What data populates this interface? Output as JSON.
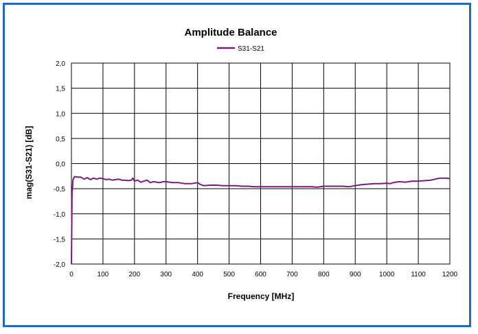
{
  "chart_data": {
    "type": "line",
    "title": "Amplitude Balance",
    "xlabel": "Frequency [MHz]",
    "ylabel": "mag(S31-S21)  [dB]",
    "xlim": [
      0,
      1200
    ],
    "ylim": [
      -2.0,
      2.0
    ],
    "x_ticks": [
      0,
      100,
      200,
      300,
      400,
      500,
      600,
      700,
      800,
      900,
      1000,
      1100,
      1200
    ],
    "y_ticks": [
      -2.0,
      -1.5,
      -1.0,
      -0.5,
      0.0,
      0.5,
      1.0,
      1.5,
      2.0
    ],
    "x_tick_labels": [
      "0",
      "100",
      "200",
      "300",
      "400",
      "500",
      "600",
      "700",
      "800",
      "900",
      "1000",
      "1100",
      "1200"
    ],
    "y_tick_labels": [
      "-2,0",
      "-1,5",
      "-1,0",
      "-0,5",
      "0,0",
      "0,5",
      "1,0",
      "1,5",
      "2,0"
    ],
    "grid": true,
    "legend_position": "top-center",
    "series": [
      {
        "name": "S31-S21",
        "color": "#7b1a7b",
        "x": [
          0,
          2,
          5,
          10,
          20,
          30,
          40,
          50,
          60,
          70,
          80,
          90,
          100,
          110,
          120,
          130,
          140,
          150,
          160,
          170,
          180,
          190,
          195,
          200,
          210,
          220,
          230,
          240,
          250,
          260,
          270,
          280,
          290,
          300,
          320,
          340,
          360,
          380,
          400,
          410,
          420,
          440,
          460,
          480,
          500,
          520,
          540,
          560,
          580,
          600,
          620,
          640,
          660,
          680,
          700,
          720,
          740,
          760,
          780,
          800,
          820,
          840,
          860,
          880,
          900,
          920,
          940,
          960,
          980,
          1000,
          1010,
          1020,
          1040,
          1060,
          1080,
          1100,
          1120,
          1140,
          1160,
          1170,
          1180,
          1190,
          1200
        ],
        "y": [
          -2.0,
          -0.6,
          -0.32,
          -0.26,
          -0.27,
          -0.27,
          -0.31,
          -0.28,
          -0.32,
          -0.29,
          -0.31,
          -0.29,
          -0.3,
          -0.32,
          -0.31,
          -0.33,
          -0.32,
          -0.31,
          -0.33,
          -0.33,
          -0.34,
          -0.33,
          -0.29,
          -0.35,
          -0.33,
          -0.37,
          -0.35,
          -0.33,
          -0.38,
          -0.36,
          -0.37,
          -0.38,
          -0.36,
          -0.36,
          -0.38,
          -0.38,
          -0.4,
          -0.4,
          -0.38,
          -0.42,
          -0.44,
          -0.43,
          -0.43,
          -0.44,
          -0.44,
          -0.44,
          -0.45,
          -0.45,
          -0.46,
          -0.46,
          -0.46,
          -0.46,
          -0.46,
          -0.46,
          -0.46,
          -0.46,
          -0.46,
          -0.46,
          -0.47,
          -0.45,
          -0.45,
          -0.45,
          -0.45,
          -0.46,
          -0.44,
          -0.42,
          -0.41,
          -0.4,
          -0.4,
          -0.39,
          -0.4,
          -0.38,
          -0.36,
          -0.37,
          -0.35,
          -0.35,
          -0.34,
          -0.33,
          -0.3,
          -0.29,
          -0.29,
          -0.29,
          -0.3
        ]
      }
    ]
  }
}
